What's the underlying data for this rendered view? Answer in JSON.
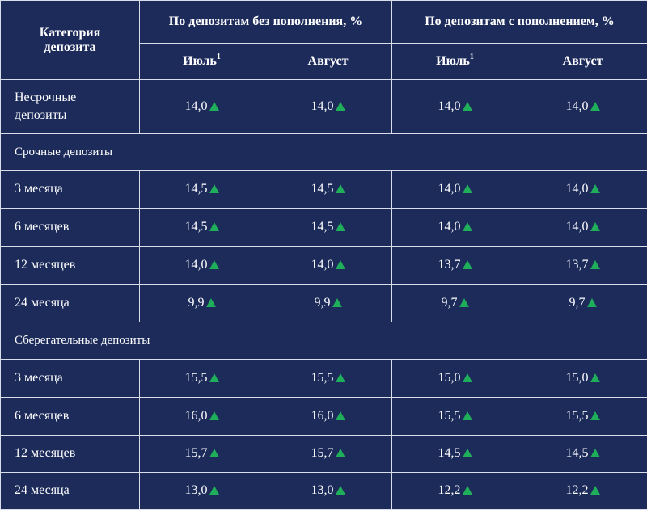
{
  "header": {
    "category": "Категория депозита",
    "group1": "По депозитам без пополнения, %",
    "group2": "По депозитам с пополнением, %",
    "col_july": "Июль",
    "col_july_sup": "1",
    "col_august": "Август"
  },
  "colors": {
    "background": "#1c2b5a",
    "border": "#d9dde8",
    "text": "#ffffff",
    "up_indicator": "#1fae5a"
  },
  "rows": [
    {
      "type": "data",
      "label": "Несрочные депозиты",
      "values": [
        "14,0",
        "14,0",
        "14,0",
        "14,0"
      ]
    },
    {
      "type": "section",
      "label": "Срочные депозиты"
    },
    {
      "type": "data",
      "label": "3 месяца",
      "values": [
        "14,5",
        "14,5",
        "14,0",
        "14,0"
      ]
    },
    {
      "type": "data",
      "label": "6 месяцев",
      "values": [
        "14,5",
        "14,5",
        "14,0",
        "14,0"
      ]
    },
    {
      "type": "data",
      "label": "12 месяцев",
      "values": [
        "14,0",
        "14,0",
        "13,7",
        "13,7"
      ]
    },
    {
      "type": "data",
      "label": "24 месяца",
      "values": [
        "9,9",
        "9,9",
        "9,7",
        "9,7"
      ]
    },
    {
      "type": "section",
      "label": "Сберегательные депозиты"
    },
    {
      "type": "data",
      "label": "3 месяца",
      "values": [
        "15,5",
        "15,5",
        "15,0",
        "15,0"
      ]
    },
    {
      "type": "data",
      "label": "6 месяцев",
      "values": [
        "16,0",
        "16,0",
        "15,5",
        "15,5"
      ]
    },
    {
      "type": "data",
      "label": "12 месяцев",
      "values": [
        "15,7",
        "15,7",
        "14,5",
        "14,5"
      ]
    },
    {
      "type": "data",
      "label": "24 месяца",
      "values": [
        "13,0",
        "13,0",
        "12,2",
        "12,2"
      ]
    }
  ],
  "indicator": "up-arrow-icon"
}
